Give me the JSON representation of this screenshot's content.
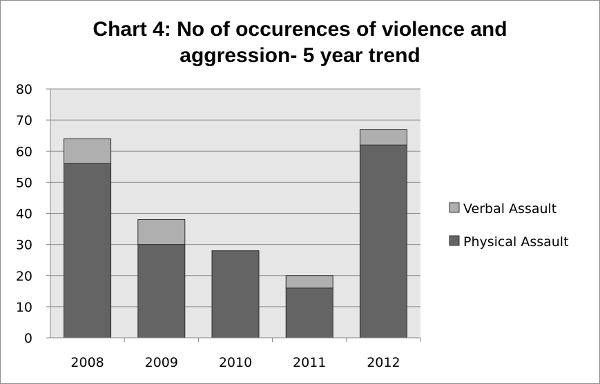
{
  "chart_data": {
    "type": "bar",
    "stacked": true,
    "title": [
      "Chart 4: No of occurences of violence and",
      "aggression- 5 year trend"
    ],
    "categories": [
      "2008",
      "2009",
      "2010",
      "2011",
      "2012"
    ],
    "series": [
      {
        "name": "Physical Assault",
        "values": [
          56,
          30,
          28,
          16,
          62
        ],
        "color": "#646464"
      },
      {
        "name": "Verbal Assault",
        "values": [
          8,
          8,
          0,
          4,
          5
        ],
        "color": "#afafaf"
      }
    ],
    "ylim": [
      0,
      80
    ],
    "yticks": [
      "0",
      "10",
      "20",
      "30",
      "40",
      "50",
      "60",
      "70",
      "80"
    ],
    "grid": true,
    "plot_background": "#e6e6e6",
    "legend_position": "right",
    "legend_order": [
      "Verbal Assault",
      "Physical Assault"
    ]
  }
}
